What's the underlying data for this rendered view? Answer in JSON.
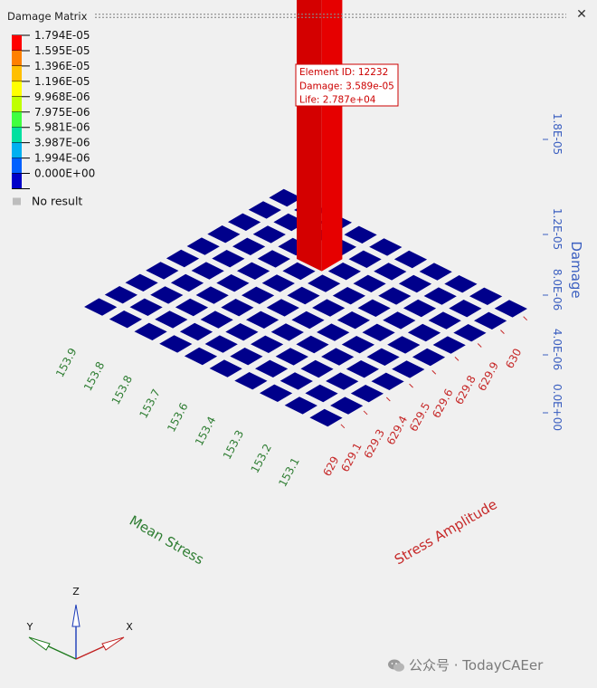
{
  "window": {
    "title": "Damage Matrix"
  },
  "legend": {
    "items": [
      {
        "label": "1.794E-05",
        "color": "#ff0000"
      },
      {
        "label": "1.595E-05",
        "color": "#ff8000"
      },
      {
        "label": "1.396E-05",
        "color": "#ffbf00"
      },
      {
        "label": "1.196E-05",
        "color": "#ffff00"
      },
      {
        "label": "9.968E-06",
        "color": "#bfff00"
      },
      {
        "label": "7.975E-06",
        "color": "#40ff40"
      },
      {
        "label": "5.981E-06",
        "color": "#00e0a0"
      },
      {
        "label": "3.987E-06",
        "color": "#00b0f0"
      },
      {
        "label": "1.994E-06",
        "color": "#0060ff"
      },
      {
        "label": "0.000E+00",
        "color": "#0000c8"
      }
    ],
    "no_result_label": "No result",
    "no_result_color": "#bdbdbd"
  },
  "tooltip": {
    "lines": [
      "Element ID: 12232",
      "Damage: 3.589e-05",
      "Life: 2.787e+04"
    ],
    "color": "#cc0000"
  },
  "chart_data": {
    "type": "3d-bar",
    "title": "",
    "x_axis": {
      "label": "Stress Amplitude",
      "ticks": [
        "629",
        "629.1",
        "629.3",
        "629.4",
        "629.5",
        "629.6",
        "629.8",
        "629.9",
        "630"
      ],
      "color": "#c62828"
    },
    "y_axis": {
      "label": "Mean Stress",
      "ticks": [
        "153.9",
        "153.8",
        "153.8",
        "153.7",
        "153.6",
        "153.4",
        "153.3",
        "153.2",
        "153.1"
      ],
      "color": "#2e7d32"
    },
    "z_axis": {
      "label": "Damage",
      "ticks": [
        "0.0E+00",
        "4.0E-06",
        "8.0E-06",
        "1.2E-05",
        "1.8E-05"
      ],
      "color": "#3b5fc0"
    },
    "grid_size": 10,
    "bars": [
      {
        "i": 7,
        "j": 6,
        "damage": 3.589e-05,
        "color": "#e00000"
      }
    ],
    "floor_color": "#00008b"
  },
  "triad": {
    "x": "X",
    "y": "Y",
    "z": "Z"
  },
  "watermark": {
    "text": "公众号 · TodayCAEer"
  }
}
